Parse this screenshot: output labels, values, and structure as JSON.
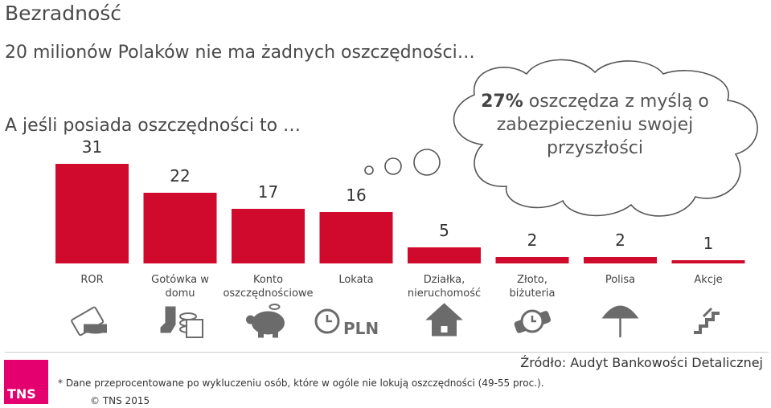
{
  "header": {
    "title": "Bezradność",
    "subtitle": "20 milionów Polaków nie ma żadnych oszczędności…",
    "question": "A jeśli posiada oszczędności to …"
  },
  "cloud": {
    "highlight": "27%",
    "text": " oszczędza z myślą o zabezpieczeniu swojej przyszłości"
  },
  "chart_data": {
    "type": "bar",
    "categories": [
      "ROR",
      "Gotówka w domu",
      "Konto oszczędnościowe",
      "Lokata",
      "Działka, nieruchomość",
      "Złoto, biżuteria",
      "Polisa",
      "Akcje"
    ],
    "values": [
      31,
      22,
      17,
      16,
      5,
      2,
      2,
      1
    ],
    "title": "",
    "xlabel": "",
    "ylabel": "",
    "ylim": [
      0,
      31
    ],
    "grid": false,
    "colors": {
      "bar": "#cf0a2c",
      "icon": "#6b6b6b"
    },
    "icons": [
      "card-cash-icon",
      "sock-coins-icon",
      "piggy-bank-icon",
      "clock-pln-icon",
      "house-icon",
      "watch-icon",
      "umbrella-icon",
      "stairs-icon"
    ],
    "icon_label": "PLN"
  },
  "footer": {
    "logo": "TNS",
    "source": "Źródło: Audyt Bankowości Detalicznej",
    "footnote": "* Dane przeprocentowane po wykluczeniu osób, które w ogóle nie lokują oszczędności (49-55 proc.).",
    "copyright": "© TNS 2015"
  }
}
